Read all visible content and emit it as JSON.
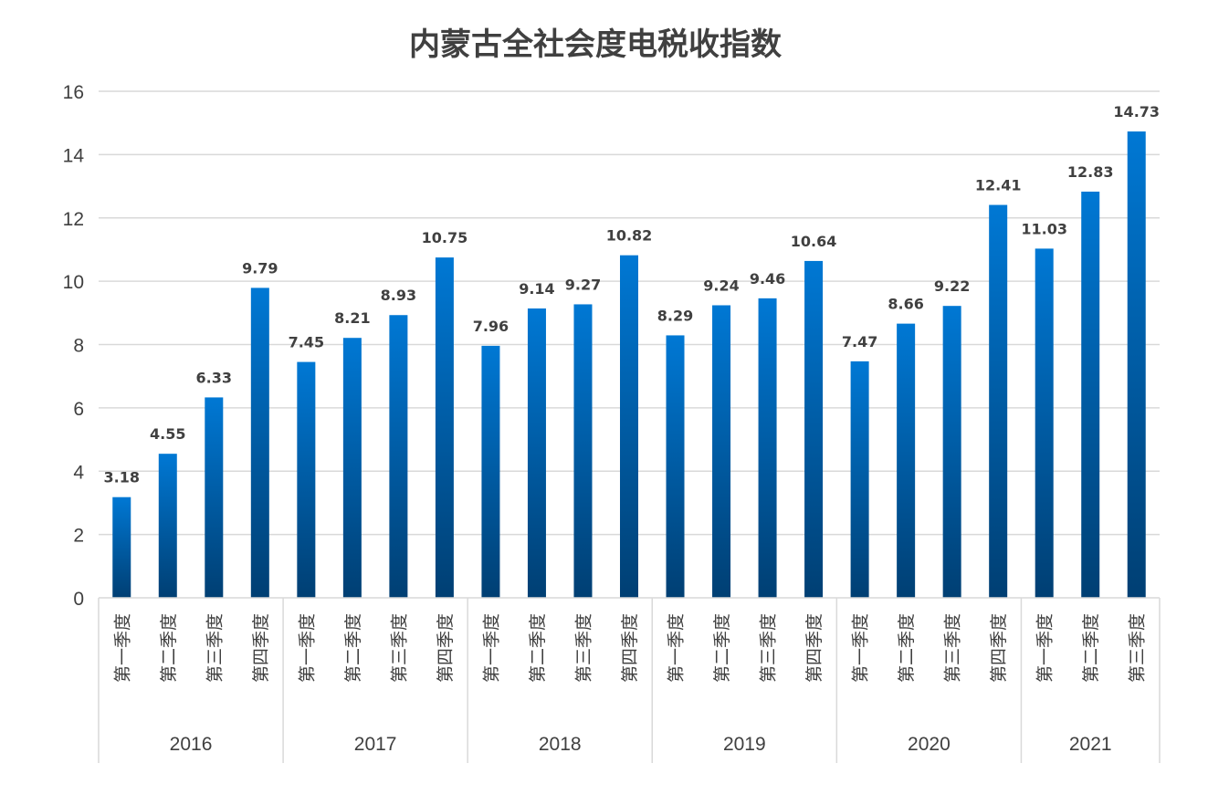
{
  "chart_data": {
    "type": "bar",
    "title": "内蒙古全社会度电税收指数",
    "xlabel": "",
    "ylabel": "",
    "ylim": [
      0,
      16
    ],
    "yticks": [
      0,
      2,
      4,
      6,
      8,
      10,
      12,
      14,
      16
    ],
    "grid": true,
    "legend": "none",
    "bar_color_top": "#0078D4",
    "bar_color_bottom": "#003F73",
    "groups": [
      {
        "year": "2016",
        "categories": [
          "第一季度",
          "第二季度",
          "第三季度",
          "第四季度"
        ],
        "values": [
          3.18,
          4.55,
          6.33,
          9.79
        ]
      },
      {
        "year": "2017",
        "categories": [
          "第一季度",
          "第二季度",
          "第三季度",
          "第四季度"
        ],
        "values": [
          7.45,
          8.21,
          8.93,
          10.75
        ]
      },
      {
        "year": "2018",
        "categories": [
          "第一季度",
          "第二季度",
          "第三季度",
          "第四季度"
        ],
        "values": [
          7.96,
          9.14,
          9.27,
          10.82
        ]
      },
      {
        "year": "2019",
        "categories": [
          "第一季度",
          "第二季度",
          "第三季度",
          "第四季度"
        ],
        "values": [
          8.29,
          9.24,
          9.46,
          10.64
        ]
      },
      {
        "year": "2020",
        "categories": [
          "第一季度",
          "第二季度",
          "第三季度",
          "第四季度"
        ],
        "values": [
          7.47,
          8.66,
          9.22,
          12.41
        ]
      },
      {
        "year": "2021",
        "categories": [
          "第一季度",
          "第二季度",
          "第三季度"
        ],
        "values": [
          11.03,
          12.83,
          14.73
        ]
      }
    ]
  }
}
